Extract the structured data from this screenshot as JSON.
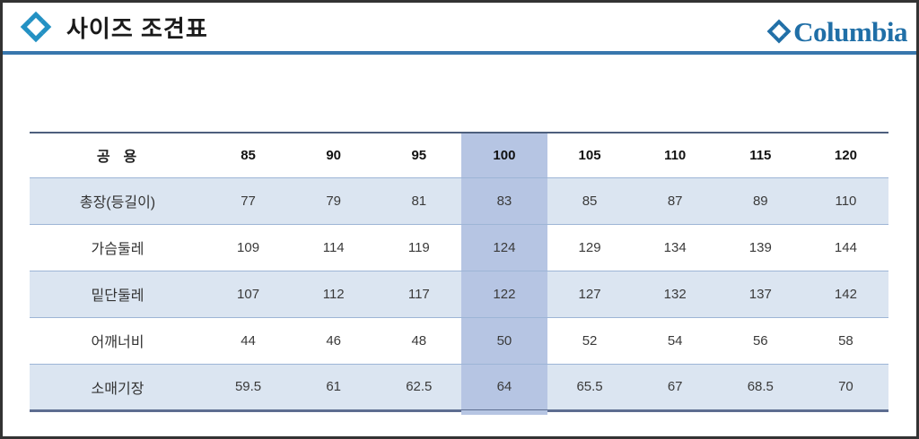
{
  "page": {
    "title": "사이즈 조견표",
    "brand": "Columbia"
  },
  "icons": {
    "header_icon": "columbia-diamond-icon",
    "brand_icon": "columbia-diamond-icon"
  },
  "table": {
    "header": {
      "label": "공  용",
      "sizes": [
        "85",
        "90",
        "95",
        "100",
        "105",
        "110",
        "115",
        "120"
      ]
    },
    "highlighted_size": "100",
    "rows": [
      {
        "label": "총장(등길이)",
        "values": [
          "77",
          "79",
          "81",
          "83",
          "85",
          "87",
          "89",
          "110"
        ]
      },
      {
        "label": "가슴둘레",
        "values": [
          "109",
          "114",
          "119",
          "124",
          "129",
          "134",
          "139",
          "144"
        ]
      },
      {
        "label": "밑단둘레",
        "values": [
          "107",
          "112",
          "117",
          "122",
          "127",
          "132",
          "137",
          "142"
        ]
      },
      {
        "label": "어깨너비",
        "values": [
          "44",
          "46",
          "48",
          "50",
          "52",
          "54",
          "56",
          "58"
        ]
      },
      {
        "label": "소매기장",
        "values": [
          "59.5",
          "61",
          "62.5",
          "64",
          "65.5",
          "67",
          "68.5",
          "70"
        ]
      }
    ]
  },
  "colors": {
    "row_alt": "#dbe5f1",
    "highlight": "#b6c5e3",
    "separator": "#9db5d6",
    "divider": "#3877ad",
    "icon_blue": "#2391c3",
    "brand_blue": "#206fa7",
    "border_top": "#4d5f7d",
    "border_bottom": "#5d6d90"
  }
}
